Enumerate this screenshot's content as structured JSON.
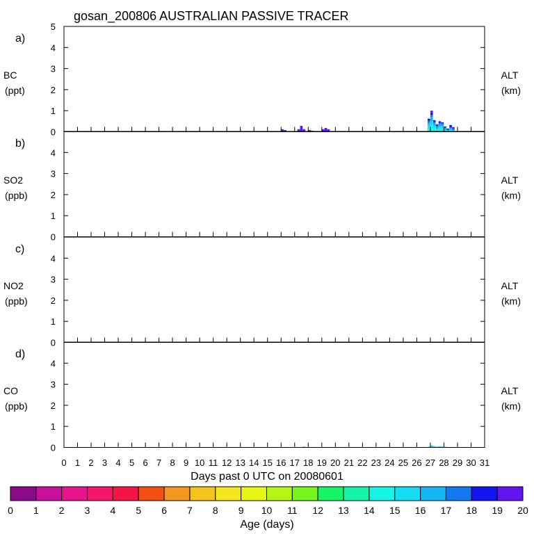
{
  "chart_data": {
    "type": "bar",
    "title": "gosan_200806 AUSTRALIAN PASSIVE TRACER",
    "xlabel": "Days past 0 UTC on 20080601",
    "x_ticks": [
      "0",
      "1",
      "2",
      "3",
      "4",
      "5",
      "6",
      "7",
      "8",
      "9",
      "10",
      "11",
      "12",
      "13",
      "14",
      "15",
      "16",
      "17",
      "18",
      "19",
      "20",
      "21",
      "22",
      "23",
      "24",
      "25",
      "26",
      "27",
      "28",
      "29",
      "30",
      "31"
    ],
    "xlim": [
      0,
      31
    ],
    "panels": [
      {
        "tag": "a)",
        "species": "BC",
        "unit": "(ppt)",
        "right_label": "ALT",
        "right_unit": "(km)",
        "ylim": [
          0,
          5
        ],
        "y_ticks": [
          "0",
          "1",
          "2",
          "3",
          "4",
          "5"
        ],
        "bars": [
          {
            "x": 16.0,
            "total": 0.12,
            "parts": [
              [
                20,
                0.12
              ]
            ]
          },
          {
            "x": 16.2,
            "total": 0.08,
            "parts": [
              [
                20,
                0.08
              ]
            ]
          },
          {
            "x": 17.2,
            "total": 0.12,
            "parts": [
              [
                20,
                0.12
              ]
            ]
          },
          {
            "x": 17.4,
            "total": 0.28,
            "parts": [
              [
                20,
                0.28
              ]
            ]
          },
          {
            "x": 17.6,
            "total": 0.12,
            "parts": [
              [
                20,
                0.12
              ]
            ]
          },
          {
            "x": 18.0,
            "total": 0.08,
            "parts": [
              [
                20,
                0.08
              ]
            ]
          },
          {
            "x": 18.2,
            "total": 0.05,
            "parts": [
              [
                20,
                0.05
              ]
            ]
          },
          {
            "x": 19.0,
            "total": 0.12,
            "parts": [
              [
                20,
                0.12
              ]
            ]
          },
          {
            "x": 19.2,
            "total": 0.18,
            "parts": [
              [
                20,
                0.18
              ]
            ]
          },
          {
            "x": 19.4,
            "total": 0.12,
            "parts": [
              [
                20,
                0.12
              ]
            ]
          },
          {
            "x": 26.8,
            "total": 0.62,
            "parts": [
              [
                14,
                0.2
              ],
              [
                15,
                0.12
              ],
              [
                16,
                0.1
              ],
              [
                17,
                0.1
              ],
              [
                18,
                0.1
              ]
            ]
          },
          {
            "x": 27.0,
            "total": 1.0,
            "parts": [
              [
                14,
                0.3
              ],
              [
                15,
                0.2
              ],
              [
                16,
                0.2
              ],
              [
                17,
                0.1
              ],
              [
                18,
                0.1
              ],
              [
                20,
                0.1
              ]
            ]
          },
          {
            "x": 27.2,
            "total": 0.55,
            "parts": [
              [
                14,
                0.2
              ],
              [
                15,
                0.1
              ],
              [
                16,
                0.1
              ],
              [
                17,
                0.08
              ],
              [
                18,
                0.07
              ]
            ]
          },
          {
            "x": 27.4,
            "total": 0.35,
            "parts": [
              [
                14,
                0.12
              ],
              [
                16,
                0.1
              ],
              [
                17,
                0.08
              ],
              [
                18,
                0.05
              ]
            ]
          },
          {
            "x": 27.6,
            "total": 0.5,
            "parts": [
              [
                14,
                0.15
              ],
              [
                15,
                0.1
              ],
              [
                16,
                0.1
              ],
              [
                17,
                0.08
              ],
              [
                18,
                0.07
              ]
            ]
          },
          {
            "x": 27.8,
            "total": 0.45,
            "parts": [
              [
                14,
                0.12
              ],
              [
                15,
                0.1
              ],
              [
                16,
                0.1
              ],
              [
                17,
                0.08
              ],
              [
                18,
                0.05
              ]
            ]
          },
          {
            "x": 28.0,
            "total": 0.25,
            "parts": [
              [
                14,
                0.08
              ],
              [
                16,
                0.08
              ],
              [
                17,
                0.05
              ],
              [
                18,
                0.04
              ]
            ]
          },
          {
            "x": 28.2,
            "total": 0.15,
            "parts": [
              [
                15,
                0.05
              ],
              [
                16,
                0.05
              ],
              [
                18,
                0.05
              ]
            ]
          },
          {
            "x": 28.4,
            "total": 0.32,
            "parts": [
              [
                14,
                0.1
              ],
              [
                16,
                0.1
              ],
              [
                18,
                0.12
              ]
            ]
          },
          {
            "x": 28.6,
            "total": 0.22,
            "parts": [
              [
                15,
                0.08
              ],
              [
                17,
                0.07
              ],
              [
                19,
                0.07
              ]
            ]
          }
        ]
      },
      {
        "tag": "b)",
        "species": "SO2",
        "unit": "(ppb)",
        "right_label": "ALT",
        "right_unit": "(km)",
        "ylim": [
          0,
          5
        ],
        "y_ticks": [
          "0",
          "1",
          "2",
          "3",
          "4"
        ],
        "bars": []
      },
      {
        "tag": "c)",
        "species": "NO2",
        "unit": "(ppb)",
        "right_label": "ALT",
        "right_unit": "(km)",
        "ylim": [
          0,
          5
        ],
        "y_ticks": [
          "0",
          "1",
          "2",
          "3",
          "4"
        ],
        "bars": []
      },
      {
        "tag": "d)",
        "species": "CO",
        "unit": "(ppb)",
        "right_label": "ALT",
        "right_unit": "(km)",
        "ylim": [
          0,
          5
        ],
        "y_ticks": [
          "0",
          "1",
          "2",
          "3",
          "4"
        ],
        "bars": [
          {
            "x": 17.6,
            "total": 0.03,
            "parts": [
              [
                20,
                0.03
              ]
            ]
          },
          {
            "x": 26.8,
            "total": 0.04,
            "parts": [
              [
                14,
                0.04
              ]
            ]
          },
          {
            "x": 27.0,
            "total": 0.09,
            "parts": [
              [
                14,
                0.05
              ],
              [
                16,
                0.04
              ]
            ]
          },
          {
            "x": 27.2,
            "total": 0.06,
            "parts": [
              [
                14,
                0.03
              ],
              [
                16,
                0.03
              ]
            ]
          },
          {
            "x": 27.4,
            "total": 0.04,
            "parts": [
              [
                15,
                0.04
              ]
            ]
          },
          {
            "x": 27.6,
            "total": 0.05,
            "parts": [
              [
                14,
                0.03
              ],
              [
                16,
                0.02
              ]
            ]
          },
          {
            "x": 27.8,
            "total": 0.04,
            "parts": [
              [
                15,
                0.04
              ]
            ]
          },
          {
            "x": 28.0,
            "total": 0.03,
            "parts": [
              [
                16,
                0.03
              ]
            ]
          }
        ]
      }
    ],
    "colorbar": {
      "label": "Age (days)",
      "tick_labels": [
        "0",
        "1",
        "2",
        "3",
        "4",
        "5",
        "6",
        "7",
        "8",
        "9",
        "10",
        "11",
        "12",
        "13",
        "14",
        "15",
        "16",
        "17",
        "18",
        "19",
        "20"
      ],
      "colors": [
        "#8b0a8b",
        "#c8109e",
        "#e8148c",
        "#f5146e",
        "#f51446",
        "#f55014",
        "#f5961e",
        "#f5c31e",
        "#f5e61e",
        "#e6f514",
        "#b4f514",
        "#78f51e",
        "#14f564",
        "#14f5aa",
        "#14f5e6",
        "#14dcf5",
        "#14b4f5",
        "#1478f0",
        "#1414f0",
        "#6414f0"
      ]
    }
  }
}
